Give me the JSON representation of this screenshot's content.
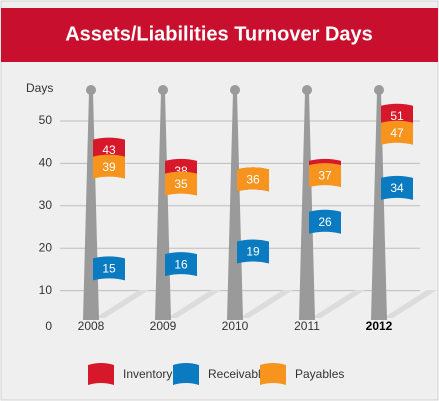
{
  "chart_data": {
    "type": "flag",
    "title": "Assets/Liabilities Turnover Days",
    "y_label": "Days",
    "categories": [
      "2008",
      "2009",
      "2010",
      "2011",
      "2012"
    ],
    "series": [
      {
        "name": "Inventory",
        "color": "#d7182a",
        "values": [
          43,
          38,
          36,
          38,
          51
        ]
      },
      {
        "name": "Receivables",
        "color": "#0a7bc1",
        "values": [
          15,
          16,
          19,
          26,
          34
        ]
      },
      {
        "name": "Payables",
        "color": "#f7941d",
        "values": [
          39,
          35,
          36,
          37,
          47
        ]
      }
    ],
    "ylim": [
      0,
      50
    ],
    "yticks": [
      0,
      10,
      20,
      30,
      40,
      50
    ],
    "grid": true
  }
}
